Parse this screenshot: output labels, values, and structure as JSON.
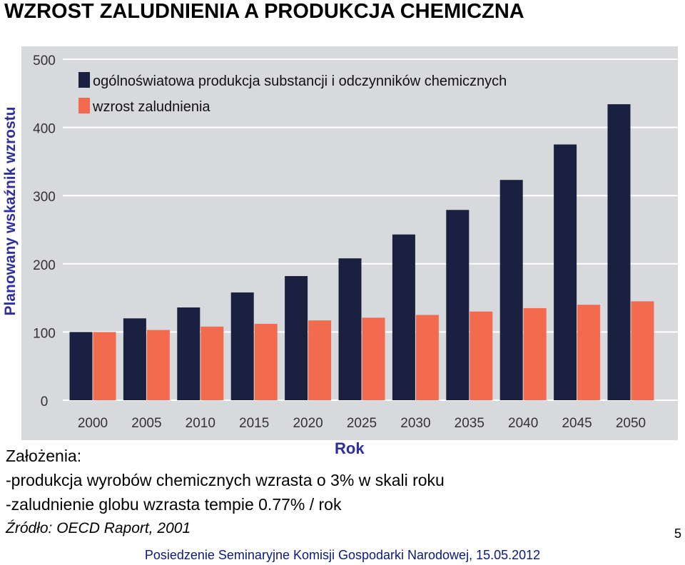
{
  "slide": {
    "title": "WZROST ZALUDNIENIA A PRODUKCJA CHEMICZNA",
    "y_axis_title": "Planowany wskaźnik wzrostu",
    "x_axis_title": "Rok",
    "notes": {
      "heading": "Założenia:",
      "line1": "-produkcja wyrobów chemicznych wzrasta o 3% w skali roku",
      "line2": "-zaludnienie globu wzrasta  tempie 0.77% / rok",
      "source": "Źródło: OECD Raport, 2001"
    },
    "page_number": "5",
    "footer": "Posiedzenie Seminaryjne Komisji Gospodarki Narodowej, 15.05.2012"
  },
  "chart_data": {
    "type": "bar",
    "categories": [
      "2000",
      "2005",
      "2010",
      "2015",
      "2020",
      "2025",
      "2030",
      "2035",
      "2040",
      "2045",
      "2050"
    ],
    "series": [
      {
        "name": "ogólnoświatowa produkcja substancji i odczynników chemicznych",
        "color": "#1a2140",
        "values": [
          100,
          120,
          136,
          158,
          182,
          208,
          243,
          279,
          323,
          375,
          434
        ]
      },
      {
        "name": "wzrost zaludnienia",
        "color": "#f26b4f",
        "values": [
          100,
          103,
          108,
          112,
          117,
          121,
          125,
          130,
          135,
          140,
          145
        ]
      }
    ],
    "ylim": [
      0,
      500
    ],
    "yticks": [
      "0",
      "100",
      "200",
      "300",
      "400",
      "500"
    ],
    "grid": true,
    "legend": "top-left",
    "background": "#d8d9dc"
  }
}
